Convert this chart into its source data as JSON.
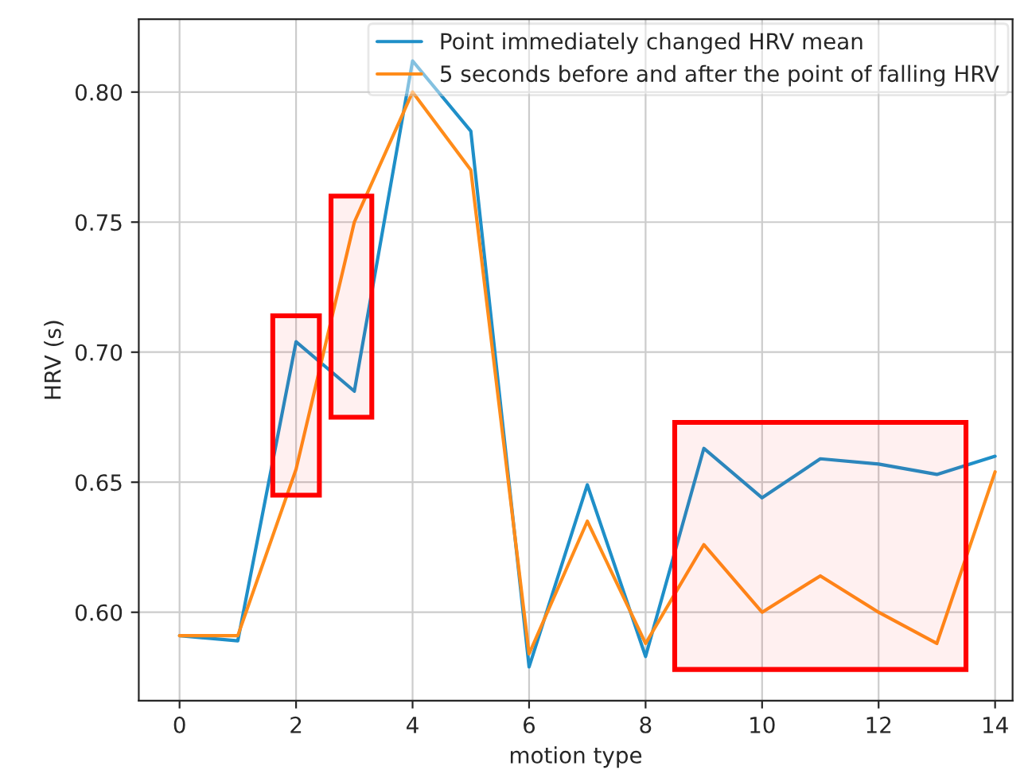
{
  "chart_data": {
    "type": "line",
    "xlabel": "motion type",
    "ylabel": "HRV (s)",
    "x": [
      0,
      1,
      2,
      3,
      4,
      5,
      6,
      7,
      8,
      9,
      10,
      11,
      12,
      13,
      14
    ],
    "series": [
      {
        "name": "Point immediately changed HRV mean",
        "color": "#1f8fc8",
        "values": [
          0.591,
          0.589,
          0.704,
          0.685,
          0.812,
          0.785,
          0.579,
          0.649,
          0.583,
          0.663,
          0.644,
          0.659,
          0.657,
          0.653,
          0.66
        ]
      },
      {
        "name": "5 seconds before and after the point of falling HRV",
        "color": "#ff8c1a",
        "values": [
          0.591,
          0.591,
          0.655,
          0.75,
          0.8,
          0.77,
          0.584,
          0.635,
          0.588,
          0.626,
          0.6,
          0.614,
          0.6,
          0.588,
          0.654
        ]
      }
    ],
    "xlim": [
      -0.7,
      14.3
    ],
    "xticks": [
      0,
      2,
      4,
      6,
      8,
      10,
      12,
      14
    ],
    "ylim": [
      0.566,
      0.828
    ],
    "yticks": [
      {
        "value": 0.6,
        "label": "0.60"
      },
      {
        "value": 0.65,
        "label": "0.65"
      },
      {
        "value": 0.7,
        "label": "0.70"
      },
      {
        "value": 0.75,
        "label": "0.75"
      },
      {
        "value": 0.8,
        "label": "0.80"
      }
    ],
    "grid": true,
    "legend": "top right",
    "marker": "none",
    "line_style": "solid",
    "bands": [
      {
        "axis": "x",
        "from": 1.6,
        "to": 2.4,
        "color": "#ff0000"
      },
      {
        "axis": "x",
        "from": 2.6,
        "to": 3.3,
        "color": "#ff0000"
      },
      {
        "axis": "x",
        "from": 8.5,
        "to": 13.5,
        "color": "#ff0000"
      }
    ]
  }
}
